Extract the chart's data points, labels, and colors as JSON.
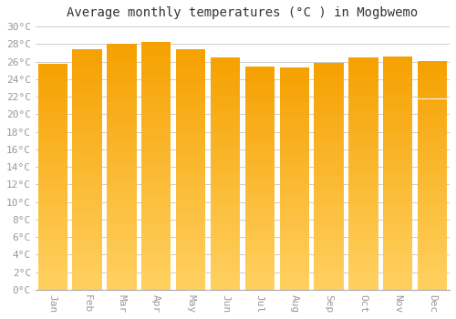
{
  "title": "Average monthly temperatures (°C ) in Mogbwemo",
  "months": [
    "Jan",
    "Feb",
    "Mar",
    "Apr",
    "May",
    "Jun",
    "Jul",
    "Aug",
    "Sep",
    "Oct",
    "Nov",
    "Dec"
  ],
  "values": [
    25.8,
    27.4,
    28.0,
    28.2,
    27.4,
    26.5,
    25.4,
    25.3,
    25.9,
    26.5,
    26.6,
    26.1
  ],
  "ylim": [
    0,
    30
  ],
  "ytick_step": 2,
  "bar_color_bottom": "#FFD060",
  "bar_color_top": "#F5A000",
  "background_color": "#FFFFFF",
  "grid_color": "#CCCCCC",
  "title_fontsize": 10,
  "tick_label_fontsize": 8,
  "tick_label_color": "#999999",
  "bar_width": 0.85
}
